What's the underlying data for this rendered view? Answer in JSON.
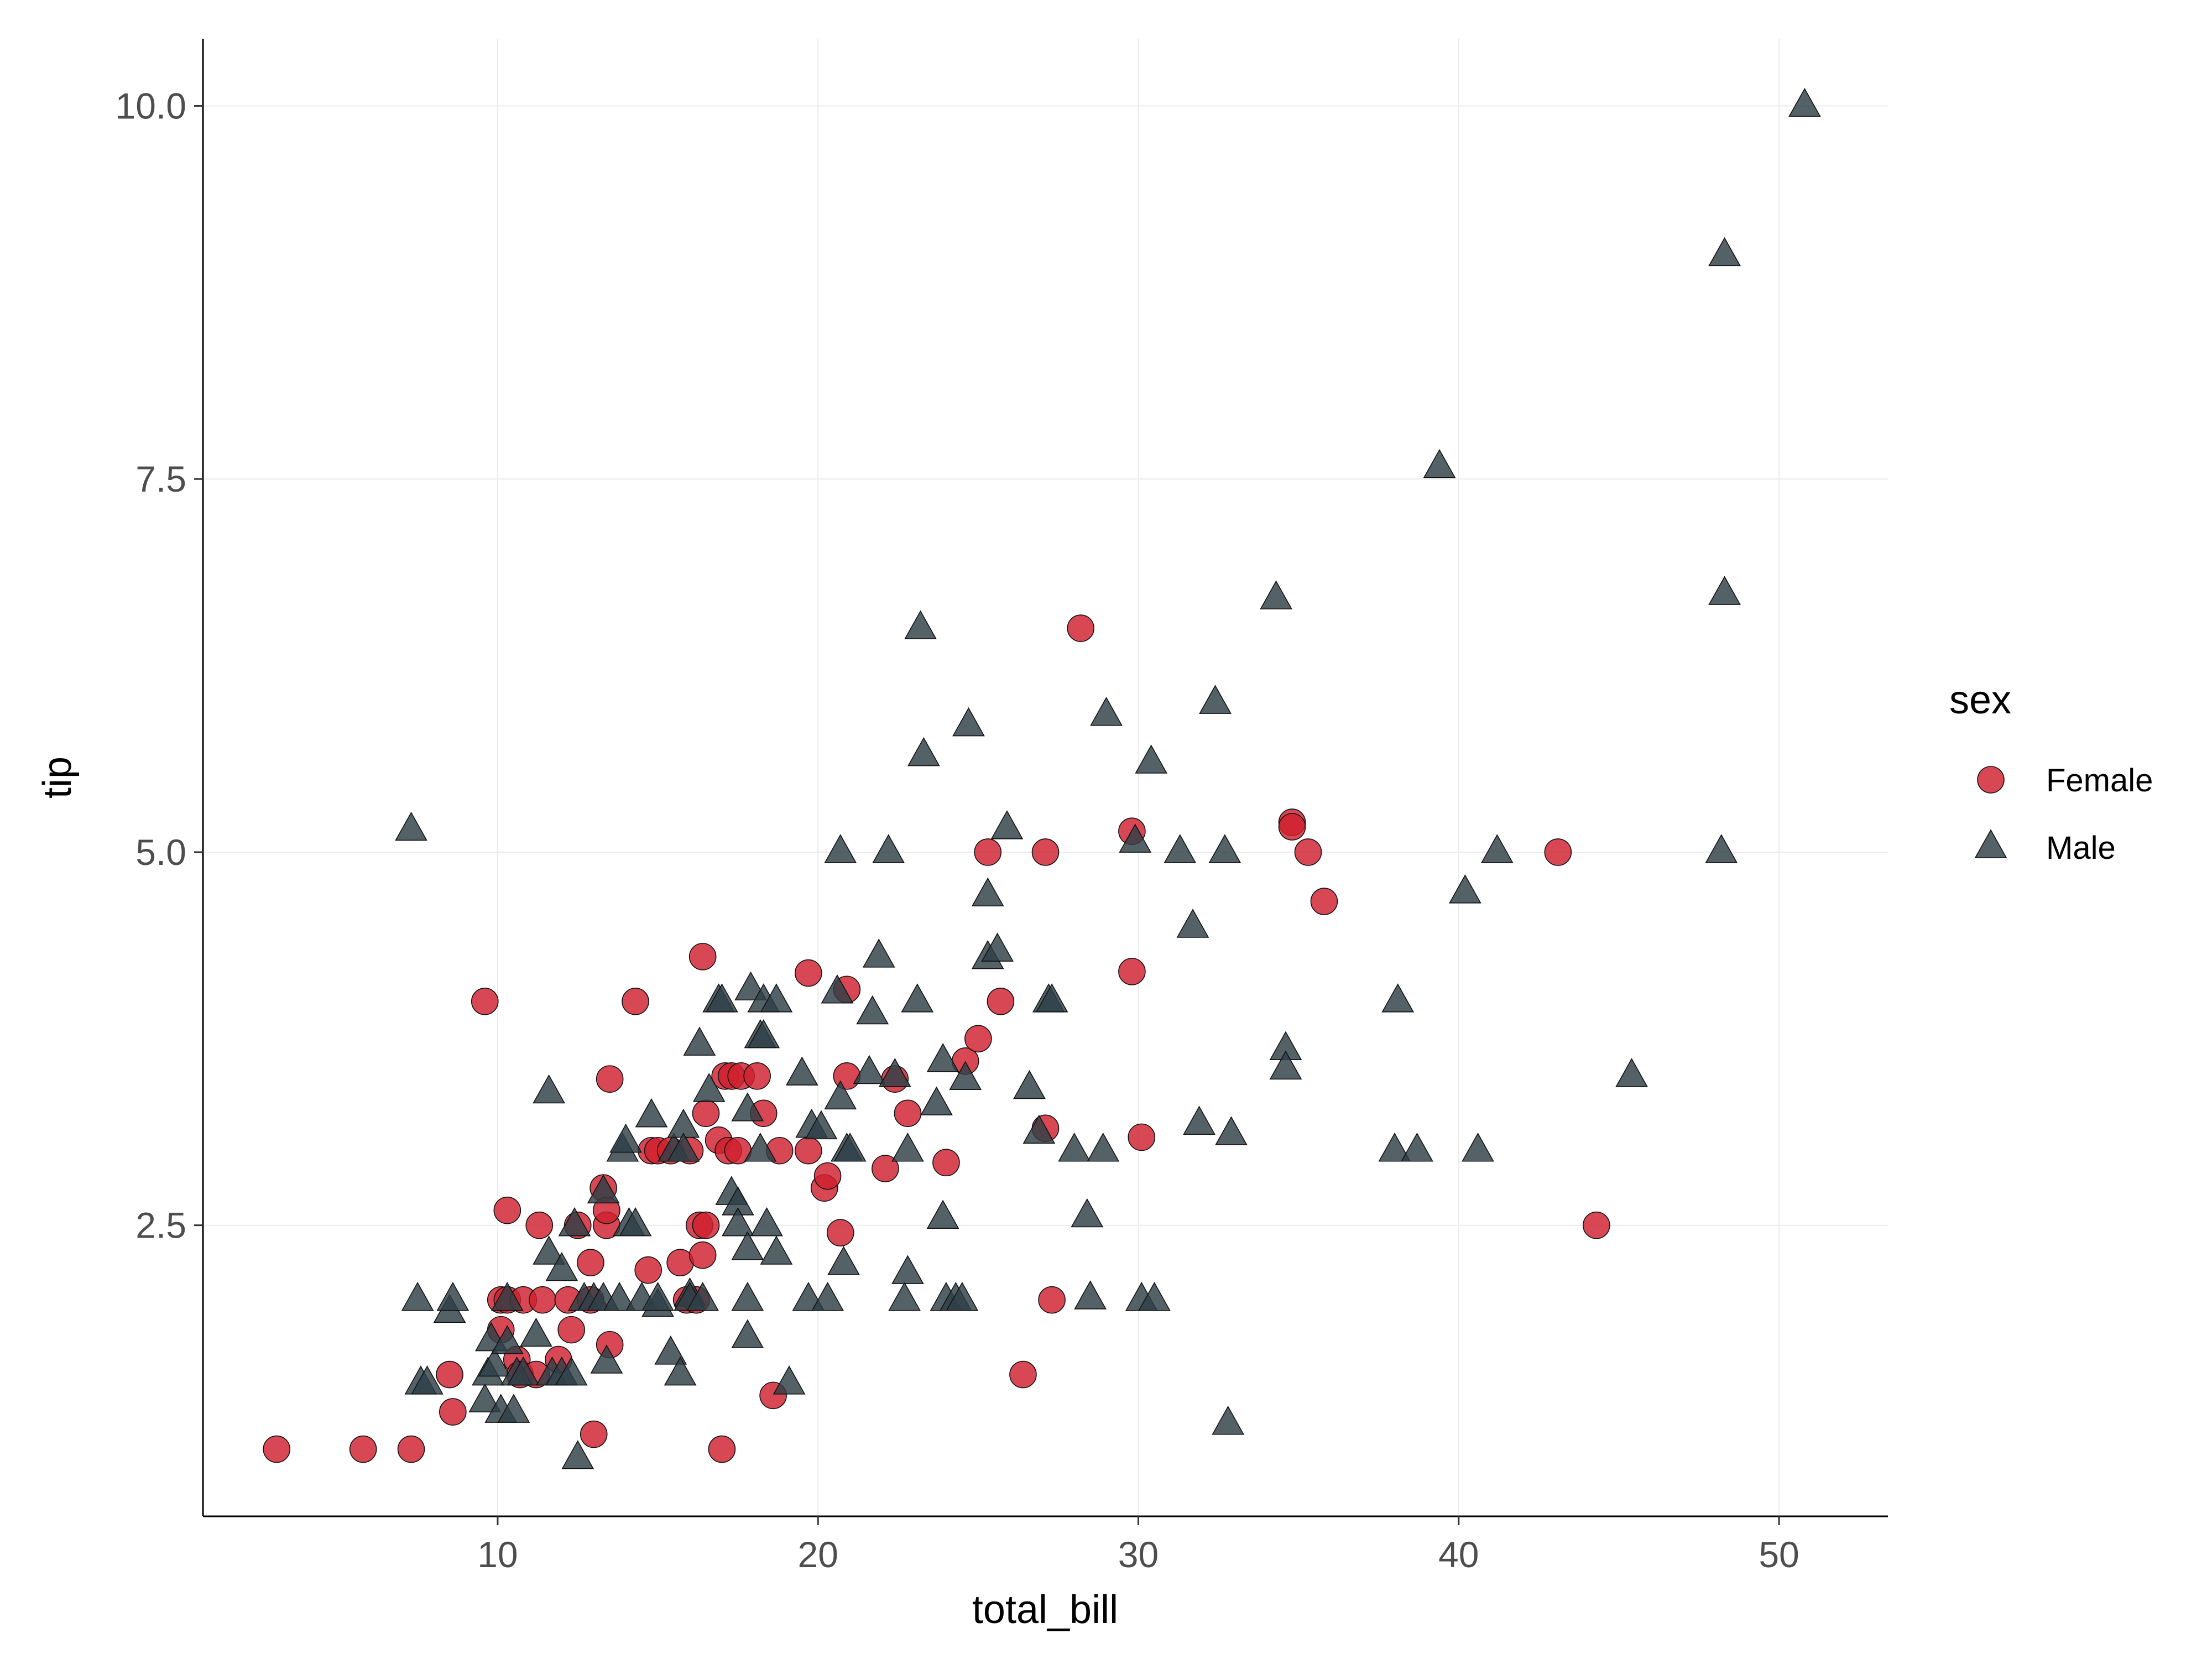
{
  "chart_data": {
    "type": "scatter",
    "title": "",
    "xlabel": "total_bill",
    "ylabel": "tip",
    "xlim": [
      0.8,
      53.4
    ],
    "ylim": [
      0.55,
      10.45
    ],
    "xticks": [
      10,
      20,
      30,
      40,
      50
    ],
    "xtick_labels": [
      "10",
      "20",
      "30",
      "40",
      "50"
    ],
    "yticks": [
      2.5,
      5.0,
      7.5,
      10.0
    ],
    "ytick_labels": [
      "2.5",
      "5.0",
      "7.5",
      "10.0"
    ],
    "grid": true,
    "legend": {
      "title": "sex",
      "placement": "right"
    },
    "series": [
      {
        "name": "Female",
        "marker": "circle",
        "color": "#d0202e",
        "points": [
          [
            3.1,
            1.0
          ],
          [
            5.8,
            1.0
          ],
          [
            7.3,
            1.0
          ],
          [
            8.5,
            1.5
          ],
          [
            8.6,
            1.25
          ],
          [
            9.6,
            4.0
          ],
          [
            10.1,
            1.8
          ],
          [
            10.1,
            2.0
          ],
          [
            10.3,
            2.6
          ],
          [
            10.3,
            2.0
          ],
          [
            10.6,
            1.6
          ],
          [
            10.7,
            1.5
          ],
          [
            10.8,
            2.0
          ],
          [
            11.2,
            1.5
          ],
          [
            11.3,
            2.5
          ],
          [
            11.4,
            2.0
          ],
          [
            11.9,
            1.6
          ],
          [
            12.2,
            2.0
          ],
          [
            12.3,
            1.8
          ],
          [
            12.5,
            2.5
          ],
          [
            12.9,
            2.0
          ],
          [
            12.9,
            2.25
          ],
          [
            13.0,
            1.1
          ],
          [
            13.3,
            2.75
          ],
          [
            13.4,
            2.5
          ],
          [
            13.4,
            2.6
          ],
          [
            13.5,
            1.7
          ],
          [
            13.5,
            3.48
          ],
          [
            14.3,
            4.0
          ],
          [
            14.7,
            2.2
          ],
          [
            14.8,
            3.0
          ],
          [
            15.0,
            3.0
          ],
          [
            15.4,
            3.0
          ],
          [
            15.7,
            2.25
          ],
          [
            15.9,
            2.0
          ],
          [
            16.0,
            3.0
          ],
          [
            16.2,
            2.0
          ],
          [
            16.3,
            2.5
          ],
          [
            16.4,
            4.3
          ],
          [
            16.4,
            2.3
          ],
          [
            16.5,
            3.25
          ],
          [
            16.5,
            2.5
          ],
          [
            16.9,
            3.07
          ],
          [
            17.0,
            1.0
          ],
          [
            17.1,
            3.5
          ],
          [
            17.2,
            3.0
          ],
          [
            17.3,
            3.5
          ],
          [
            17.5,
            3.0
          ],
          [
            17.6,
            3.5
          ],
          [
            18.1,
            3.5
          ],
          [
            18.3,
            3.25
          ],
          [
            18.6,
            1.36
          ],
          [
            18.8,
            3.0
          ],
          [
            19.7,
            4.19
          ],
          [
            19.7,
            3.0
          ],
          [
            20.2,
            2.75
          ],
          [
            20.3,
            2.83
          ],
          [
            20.7,
            2.45
          ],
          [
            20.9,
            4.08
          ],
          [
            20.9,
            3.5
          ],
          [
            22.1,
            2.88
          ],
          [
            22.4,
            3.48
          ],
          [
            22.8,
            3.25
          ],
          [
            24.0,
            2.92
          ],
          [
            24.6,
            3.6
          ],
          [
            25.0,
            3.75
          ],
          [
            25.3,
            5.0
          ],
          [
            25.7,
            4.0
          ],
          [
            26.4,
            1.5
          ],
          [
            27.1,
            3.15
          ],
          [
            27.1,
            5.0
          ],
          [
            27.3,
            2.0
          ],
          [
            28.2,
            6.5
          ],
          [
            29.8,
            5.14
          ],
          [
            29.8,
            4.2
          ],
          [
            30.1,
            3.09
          ],
          [
            34.8,
            5.2
          ],
          [
            34.8,
            5.17
          ],
          [
            35.3,
            5.0
          ],
          [
            35.8,
            4.67
          ],
          [
            43.1,
            5.0
          ],
          [
            44.3,
            2.5
          ]
        ]
      },
      {
        "name": "Male",
        "marker": "triangle",
        "color": "#2e3f47",
        "points": [
          [
            7.3,
            5.15
          ],
          [
            7.5,
            2.0
          ],
          [
            7.6,
            1.44
          ],
          [
            7.8,
            1.44
          ],
          [
            8.5,
            1.92
          ],
          [
            8.6,
            2.0
          ],
          [
            9.6,
            1.32
          ],
          [
            9.7,
            1.5
          ],
          [
            9.8,
            1.73
          ],
          [
            9.9,
            1.56
          ],
          [
            10.1,
            1.25
          ],
          [
            10.3,
            1.71
          ],
          [
            10.3,
            2.0
          ],
          [
            10.5,
            1.25
          ],
          [
            10.6,
            1.5
          ],
          [
            10.8,
            1.5
          ],
          [
            11.2,
            1.76
          ],
          [
            11.6,
            3.39
          ],
          [
            11.6,
            2.31
          ],
          [
            11.7,
            1.5
          ],
          [
            12.0,
            1.5
          ],
          [
            12.0,
            2.2
          ],
          [
            12.3,
            1.5
          ],
          [
            12.4,
            2.5
          ],
          [
            12.5,
            0.94
          ],
          [
            12.7,
            2.0
          ],
          [
            13.0,
            2.0
          ],
          [
            13.3,
            2.72
          ],
          [
            13.3,
            2.0
          ],
          [
            13.4,
            1.58
          ],
          [
            13.8,
            2.0
          ],
          [
            13.9,
            3.0
          ],
          [
            14.0,
            3.06
          ],
          [
            14.1,
            2.5
          ],
          [
            14.3,
            2.5
          ],
          [
            14.5,
            2.0
          ],
          [
            14.8,
            3.23
          ],
          [
            15.0,
            1.96
          ],
          [
            15.0,
            2.0
          ],
          [
            15.4,
            1.64
          ],
          [
            15.5,
            3.0
          ],
          [
            15.7,
            1.5
          ],
          [
            15.8,
            3.16
          ],
          [
            15.8,
            3.0
          ],
          [
            16.0,
            2.03
          ],
          [
            16.0,
            2.0
          ],
          [
            16.3,
            3.71
          ],
          [
            16.4,
            2.0
          ],
          [
            16.6,
            3.4
          ],
          [
            16.9,
            4.0
          ],
          [
            17.0,
            4.0
          ],
          [
            17.3,
            2.71
          ],
          [
            17.5,
            2.64
          ],
          [
            17.5,
            2.5
          ],
          [
            17.8,
            2.34
          ],
          [
            17.8,
            3.27
          ],
          [
            17.8,
            1.75
          ],
          [
            17.8,
            2.0
          ],
          [
            17.9,
            4.08
          ],
          [
            18.2,
            3.0
          ],
          [
            18.2,
            3.76
          ],
          [
            18.3,
            3.76
          ],
          [
            18.3,
            4.0
          ],
          [
            18.4,
            2.5
          ],
          [
            18.7,
            2.31
          ],
          [
            18.7,
            4.0
          ],
          [
            19.1,
            1.44
          ],
          [
            19.5,
            3.51
          ],
          [
            19.7,
            2.0
          ],
          [
            19.8,
            3.16
          ],
          [
            20.1,
            3.15
          ],
          [
            20.3,
            2.0
          ],
          [
            20.6,
            4.06
          ],
          [
            20.7,
            3.35
          ],
          [
            20.7,
            5.0
          ],
          [
            20.8,
            2.24
          ],
          [
            20.9,
            3.0
          ],
          [
            21.0,
            3.0
          ],
          [
            21.6,
            3.52
          ],
          [
            21.7,
            3.92
          ],
          [
            21.9,
            4.3
          ],
          [
            22.2,
            5.0
          ],
          [
            22.4,
            3.5
          ],
          [
            22.7,
            2.0
          ],
          [
            22.8,
            2.18
          ],
          [
            22.8,
            3.0
          ],
          [
            23.1,
            4.0
          ],
          [
            23.2,
            6.5
          ],
          [
            23.3,
            5.65
          ],
          [
            23.7,
            3.31
          ],
          [
            23.9,
            3.6
          ],
          [
            23.9,
            2.55
          ],
          [
            24.0,
            2.0
          ],
          [
            24.3,
            2.0
          ],
          [
            24.5,
            2.0
          ],
          [
            24.6,
            3.48
          ],
          [
            24.7,
            5.85
          ],
          [
            25.3,
            4.71
          ],
          [
            25.3,
            4.29
          ],
          [
            25.6,
            4.34
          ],
          [
            25.9,
            5.16
          ],
          [
            26.6,
            3.42
          ],
          [
            26.9,
            3.12
          ],
          [
            27.2,
            4.0
          ],
          [
            27.3,
            4.0
          ],
          [
            28.0,
            3.0
          ],
          [
            28.4,
            2.56
          ],
          [
            28.5,
            2.01
          ],
          [
            28.9,
            3.0
          ],
          [
            29.0,
            5.92
          ],
          [
            29.9,
            5.07
          ],
          [
            30.1,
            2.0
          ],
          [
            30.4,
            5.6
          ],
          [
            30.5,
            2.0
          ],
          [
            31.3,
            5.0
          ],
          [
            31.7,
            4.5
          ],
          [
            31.9,
            3.18
          ],
          [
            32.4,
            6.0
          ],
          [
            32.7,
            5.0
          ],
          [
            32.8,
            1.17
          ],
          [
            32.9,
            3.11
          ],
          [
            34.3,
            6.7
          ],
          [
            34.6,
            3.68
          ],
          [
            34.6,
            3.55
          ],
          [
            38.0,
            3.0
          ],
          [
            38.1,
            4.0
          ],
          [
            38.7,
            3.0
          ],
          [
            39.4,
            7.58
          ],
          [
            40.2,
            4.73
          ],
          [
            40.6,
            3.0
          ],
          [
            41.2,
            5.0
          ],
          [
            45.4,
            3.5
          ],
          [
            48.2,
            5.0
          ],
          [
            48.3,
            6.73
          ],
          [
            48.3,
            9.0
          ],
          [
            50.8,
            10.0
          ]
        ]
      }
    ]
  }
}
